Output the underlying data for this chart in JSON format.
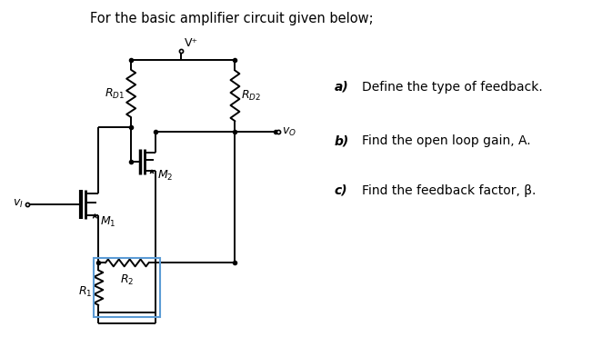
{
  "title": "For the basic amplifier circuit given below;",
  "bg_color": "#ffffff",
  "line_color": "#000000",
  "blue_color": "#5B9BD5",
  "questions": [
    {
      "label": "a)",
      "text": "Define the type of feedback."
    },
    {
      "label": "b)",
      "text": "Find the open loop gain, A."
    },
    {
      "label": "c)",
      "text": "Find the feedback factor, β."
    }
  ],
  "labels": {
    "Vplus": "V⁺",
    "RD1": "$R_{D1}$",
    "RD2": "$R_{D2}$",
    "M1": "$M_1$",
    "M2": "$M_2$",
    "R2": "$R_2$",
    "R1": "$R_1$",
    "vo": "$v_O$",
    "vi": "$v_I$"
  }
}
